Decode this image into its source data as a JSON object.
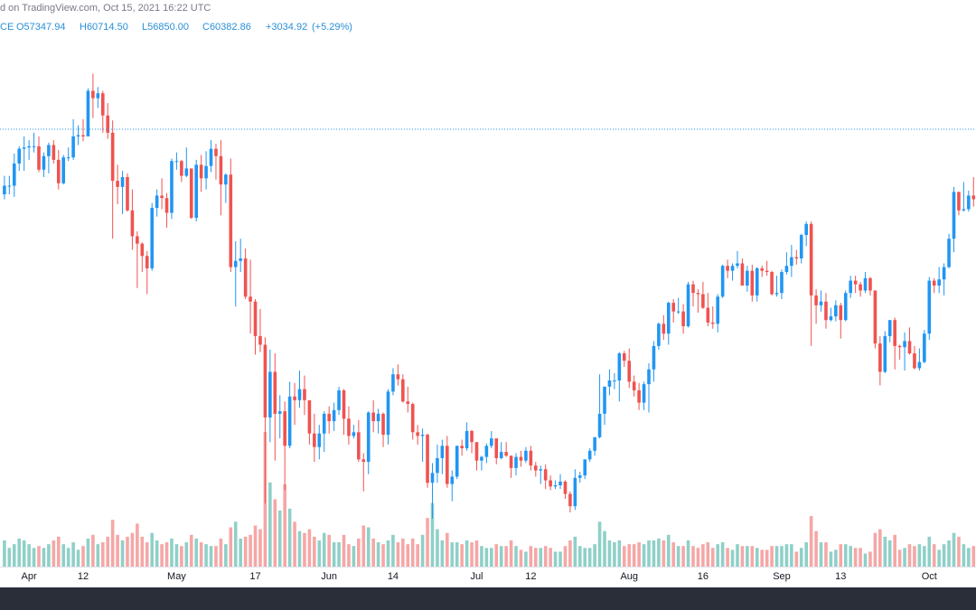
{
  "chart_data": {
    "type": "candlestick",
    "header": {
      "source": "d on TradingView.com, Oct 15, 2021 16:22 UTC",
      "symbol": "CE",
      "open": {
        "value": 57347.94,
        "label": "O57347.94"
      },
      "high": {
        "value": 60714.5,
        "label": "H60714.50"
      },
      "low": {
        "value": 56850.0,
        "label": "L56850.00"
      },
      "close": {
        "value": 60382.86,
        "label": "C60382.86"
      },
      "change": {
        "value": 3034.92,
        "label": "+3034.92"
      },
      "change_pct": {
        "value": 5.29,
        "label": "(+5.29%)"
      }
    },
    "up_color": "#2196f3",
    "down_color": "#ef5350",
    "volume_up_color": "#8fd0c8",
    "volume_down_color": "#f5a7a6",
    "price_line_color": "#2196f3",
    "xlim": [
      -0.9,
      197.5
    ],
    "ylim": [
      24900,
      69400
    ],
    "vlim": [
      0,
      100
    ],
    "xticks": [
      {
        "value": 5,
        "label": "Apr"
      },
      {
        "value": 16,
        "label": "12"
      },
      {
        "value": 35,
        "label": "May"
      },
      {
        "value": 51,
        "label": "17"
      },
      {
        "value": 66,
        "label": "Jun"
      },
      {
        "value": 79,
        "label": "14"
      },
      {
        "value": 96,
        "label": "Jul"
      },
      {
        "value": 107,
        "label": "12"
      },
      {
        "value": 127,
        "label": "Aug"
      },
      {
        "value": 142,
        "label": "16"
      },
      {
        "value": 158,
        "label": "Sep"
      },
      {
        "value": 170,
        "label": "13"
      },
      {
        "value": 188,
        "label": "Oct"
      }
    ],
    "candles": [
      [
        55100,
        56600,
        54700,
        55800
      ],
      [
        55800,
        56600,
        55100,
        55800
      ],
      [
        55800,
        58400,
        54900,
        57600
      ],
      [
        57600,
        59000,
        57000,
        58800
      ],
      [
        58800,
        59800,
        57000,
        58900
      ],
      [
        58900,
        59500,
        57900,
        59000
      ],
      [
        59000,
        60100,
        58500,
        59000
      ],
      [
        59000,
        59800,
        56900,
        57100
      ],
      [
        57100,
        58500,
        56500,
        58200
      ],
      [
        58200,
        59300,
        56800,
        59100
      ],
      [
        59100,
        59500,
        57600,
        57900
      ],
      [
        57900,
        58700,
        55500,
        56000
      ],
      [
        56000,
        58300,
        55900,
        58100
      ],
      [
        58100,
        58900,
        57800,
        58100
      ],
      [
        58100,
        61200,
        57900,
        59800
      ],
      [
        59800,
        60700,
        59100,
        59900
      ],
      [
        59900,
        61200,
        59400,
        59800
      ],
      [
        59800,
        63700,
        59800,
        63500
      ],
      [
        63500,
        64900,
        61300,
        62900
      ],
      [
        62900,
        63800,
        62100,
        63300
      ],
      [
        63300,
        63500,
        60100,
        61500
      ],
      [
        61500,
        62500,
        59600,
        60100
      ],
      [
        60100,
        61100,
        51500,
        56200
      ],
      [
        56200,
        57500,
        54300,
        55700
      ],
      [
        55700,
        57000,
        53500,
        56500
      ],
      [
        56500,
        56800,
        53700,
        53800
      ],
      [
        53800,
        55500,
        50600,
        51700
      ],
      [
        51700,
        52100,
        47500,
        51100
      ],
      [
        51100,
        51200,
        48800,
        50100
      ],
      [
        50100,
        50500,
        47000,
        49100
      ],
      [
        49100,
        54400,
        48900,
        54000
      ],
      [
        54000,
        55500,
        53300,
        55000
      ],
      [
        55000,
        56400,
        53900,
        54800
      ],
      [
        54800,
        55200,
        52400,
        53600
      ],
      [
        53600,
        58000,
        53100,
        57800
      ],
      [
        57800,
        58500,
        57100,
        57800
      ],
      [
        57800,
        57900,
        56100,
        56600
      ],
      [
        56600,
        58900,
        56500,
        57200
      ],
      [
        57200,
        57200,
        53100,
        53200
      ],
      [
        53200,
        57900,
        52900,
        57500
      ],
      [
        57500,
        58300,
        55300,
        56400
      ],
      [
        56400,
        58600,
        55500,
        57400
      ],
      [
        57400,
        59500,
        56900,
        58800
      ],
      [
        58800,
        59200,
        56300,
        58200
      ],
      [
        58200,
        59500,
        53400,
        55900
      ],
      [
        55900,
        56800,
        54400,
        56700
      ],
      [
        56700,
        58000,
        48800,
        49200
      ],
      [
        49200,
        51300,
        46000,
        49700
      ],
      [
        49700,
        51500,
        48800,
        49900
      ],
      [
        49900,
        50700,
        46600,
        46800
      ],
      [
        46800,
        49800,
        43800,
        46400
      ],
      [
        46400,
        46600,
        42100,
        43600
      ],
      [
        43600,
        45800,
        42300,
        42900
      ],
      [
        42900,
        43500,
        30000,
        37000
      ],
      [
        37000,
        42500,
        35000,
        40700
      ],
      [
        40700,
        42200,
        33500,
        37300
      ],
      [
        37300,
        38800,
        35300,
        37500
      ],
      [
        37500,
        38300,
        31100,
        34700
      ],
      [
        34700,
        39900,
        34500,
        38700
      ],
      [
        38700,
        39800,
        36400,
        38400
      ],
      [
        38400,
        40800,
        37800,
        39300
      ],
      [
        39300,
        40400,
        37200,
        38400
      ],
      [
        38400,
        38400,
        34800,
        35700
      ],
      [
        35700,
        37300,
        33400,
        34600
      ],
      [
        34600,
        36400,
        33600,
        35700
      ],
      [
        35700,
        37500,
        34200,
        37300
      ],
      [
        37300,
        37900,
        35700,
        36700
      ],
      [
        36700,
        38200,
        35900,
        37600
      ],
      [
        37600,
        39500,
        37200,
        39200
      ],
      [
        39200,
        39300,
        35600,
        36900
      ],
      [
        36900,
        37900,
        34800,
        35500
      ],
      [
        35500,
        36400,
        35300,
        35800
      ],
      [
        35800,
        36800,
        33400,
        33600
      ],
      [
        33600,
        34100,
        31000,
        33400
      ],
      [
        33400,
        37500,
        32400,
        37400
      ],
      [
        37400,
        38400,
        35800,
        36700
      ],
      [
        36700,
        37700,
        35700,
        37300
      ],
      [
        37300,
        37400,
        34600,
        35600
      ],
      [
        35600,
        39300,
        34800,
        39100
      ],
      [
        39100,
        41000,
        38800,
        40500
      ],
      [
        40500,
        41300,
        39600,
        40100
      ],
      [
        40100,
        40500,
        38200,
        38300
      ],
      [
        38300,
        39500,
        37400,
        38100
      ],
      [
        38100,
        38200,
        35200,
        35800
      ],
      [
        35800,
        36400,
        34800,
        35500
      ],
      [
        35500,
        36100,
        33400,
        35600
      ],
      [
        35600,
        35700,
        31300,
        31700
      ],
      [
        31700,
        33300,
        28800,
        32500
      ],
      [
        32500,
        34800,
        31700,
        33700
      ],
      [
        33700,
        35200,
        32400,
        34700
      ],
      [
        34700,
        35500,
        31300,
        31600
      ],
      [
        31600,
        32700,
        30200,
        32200
      ],
      [
        32200,
        34700,
        32000,
        34700
      ],
      [
        34700,
        35200,
        33900,
        34500
      ],
      [
        34500,
        36600,
        34300,
        35900
      ],
      [
        35900,
        36000,
        34100,
        35000
      ],
      [
        35000,
        35000,
        32700,
        33500
      ],
      [
        33500,
        33900,
        32700,
        33800
      ],
      [
        33800,
        34900,
        33300,
        34700
      ],
      [
        34700,
        35900,
        34500,
        35300
      ],
      [
        35300,
        35300,
        33200,
        33700
      ],
      [
        33700,
        35000,
        33600,
        34200
      ],
      [
        34200,
        35000,
        33800,
        33900
      ],
      [
        33900,
        33900,
        32100,
        32900
      ],
      [
        32900,
        34100,
        32300,
        33800
      ],
      [
        33800,
        34300,
        33000,
        33500
      ],
      [
        33500,
        34600,
        33300,
        34300
      ],
      [
        34300,
        34700,
        32700,
        33100
      ],
      [
        33100,
        33400,
        32200,
        32700
      ],
      [
        32700,
        33100,
        31600,
        32800
      ],
      [
        32800,
        33200,
        31200,
        31900
      ],
      [
        31900,
        32300,
        31100,
        31400
      ],
      [
        31400,
        31900,
        31200,
        31500
      ],
      [
        31500,
        32400,
        31200,
        31800
      ],
      [
        31800,
        31900,
        30400,
        30800
      ],
      [
        30800,
        31000,
        29300,
        29800
      ],
      [
        29800,
        32800,
        29500,
        32100
      ],
      [
        32100,
        32600,
        31700,
        32300
      ],
      [
        32300,
        33600,
        32000,
        33600
      ],
      [
        33600,
        34500,
        33400,
        34300
      ],
      [
        34300,
        35400,
        33900,
        35400
      ],
      [
        35400,
        40500,
        35300,
        37300
      ],
      [
        37300,
        39500,
        36400,
        39500
      ],
      [
        39500,
        40900,
        38800,
        40000
      ],
      [
        40000,
        40600,
        39300,
        40000
      ],
      [
        40000,
        42300,
        38300,
        42200
      ],
      [
        42200,
        42400,
        41100,
        41600
      ],
      [
        41600,
        42600,
        39400,
        39900
      ],
      [
        39900,
        40400,
        38700,
        39200
      ],
      [
        39200,
        39800,
        37600,
        38200
      ],
      [
        38200,
        39900,
        37600,
        39700
      ],
      [
        39700,
        41400,
        37400,
        40900
      ],
      [
        40900,
        43200,
        39900,
        42800
      ],
      [
        42800,
        44700,
        42500,
        44600
      ],
      [
        44600,
        45300,
        43300,
        43800
      ],
      [
        43800,
        46400,
        42900,
        46300
      ],
      [
        46300,
        46600,
        44700,
        45600
      ],
      [
        45600,
        46700,
        45400,
        45600
      ],
      [
        45600,
        46200,
        43800,
        44400
      ],
      [
        44400,
        48000,
        44300,
        47800
      ],
      [
        47800,
        48100,
        46000,
        47100
      ],
      [
        47100,
        47400,
        45500,
        47000
      ],
      [
        47000,
        48000,
        45800,
        45900
      ],
      [
        45900,
        47100,
        44400,
        44700
      ],
      [
        44700,
        46000,
        44200,
        44600
      ],
      [
        44600,
        47000,
        43900,
        46800
      ],
      [
        46800,
        49400,
        46700,
        49300
      ],
      [
        49300,
        49800,
        48300,
        48900
      ],
      [
        48900,
        49500,
        48100,
        49300
      ],
      [
        49300,
        50500,
        49100,
        49500
      ],
      [
        49500,
        49900,
        47700,
        47700
      ],
      [
        47700,
        49300,
        47200,
        48900
      ],
      [
        48900,
        49400,
        46400,
        46900
      ],
      [
        46900,
        49200,
        46400,
        49100
      ],
      [
        49100,
        49300,
        48400,
        48900
      ],
      [
        48900,
        49700,
        48500,
        48800
      ],
      [
        48800,
        48900,
        46900,
        47000
      ],
      [
        47000,
        48500,
        46800,
        47100
      ],
      [
        47100,
        49000,
        46600,
        48800
      ],
      [
        48800,
        50400,
        48600,
        49300
      ],
      [
        49300,
        51000,
        48400,
        50000
      ],
      [
        50000,
        50600,
        49400,
        49900
      ],
      [
        49900,
        51900,
        49500,
        51800
      ],
      [
        51800,
        52900,
        50900,
        52700
      ],
      [
        52700,
        52900,
        42800,
        46900
      ],
      [
        46900,
        47400,
        44600,
        46100
      ],
      [
        46100,
        47300,
        45600,
        46400
      ],
      [
        46400,
        47100,
        44200,
        44900
      ],
      [
        44900,
        45900,
        44800,
        45200
      ],
      [
        45200,
        46500,
        44800,
        46100
      ],
      [
        46100,
        46300,
        43400,
        44900
      ],
      [
        44900,
        47300,
        44800,
        47100
      ],
      [
        47100,
        48500,
        46700,
        48100
      ],
      [
        48100,
        48500,
        47100,
        47800
      ],
      [
        47800,
        48000,
        46800,
        47300
      ],
      [
        47300,
        48800,
        47100,
        48300
      ],
      [
        48300,
        48400,
        46900,
        47300
      ],
      [
        47300,
        47300,
        42600,
        43000
      ],
      [
        43000,
        43600,
        39600,
        40700
      ],
      [
        40700,
        44000,
        40600,
        43600
      ],
      [
        43600,
        44900,
        43100,
        44900
      ],
      [
        44900,
        45100,
        40900,
        42800
      ],
      [
        42800,
        42900,
        41700,
        42700
      ],
      [
        42700,
        43900,
        40800,
        43200
      ],
      [
        43200,
        44300,
        42100,
        42200
      ],
      [
        42200,
        42800,
        40900,
        41000
      ],
      [
        41000,
        42600,
        40800,
        41500
      ],
      [
        41500,
        44100,
        41400,
        43800
      ],
      [
        43800,
        48400,
        43300,
        48100
      ],
      [
        48100,
        48300,
        47100,
        47700
      ],
      [
        47700,
        49200,
        47100,
        48200
      ],
      [
        48200,
        49500,
        46900,
        49200
      ],
      [
        49200,
        51900,
        49100,
        51500
      ],
      [
        51500,
        55700,
        50400,
        55300
      ],
      [
        55300,
        55300,
        53400,
        53800
      ],
      [
        53800,
        56100,
        53700,
        53900
      ],
      [
        53900,
        55400,
        53700,
        55000
      ],
      [
        55000,
        56500,
        54100,
        54700
      ]
    ],
    "volumes": [
      14,
      10,
      12,
      15,
      14,
      12,
      10,
      11,
      10,
      12,
      14,
      16,
      12,
      10,
      13,
      9,
      11,
      15,
      17,
      12,
      13,
      16,
      25,
      17,
      14,
      16,
      18,
      23,
      16,
      13,
      18,
      14,
      12,
      13,
      15,
      12,
      11,
      13,
      17,
      15,
      13,
      12,
      11,
      11,
      15,
      12,
      21,
      24,
      15,
      16,
      17,
      22,
      20,
      72,
      45,
      36,
      30,
      44,
      31,
      24,
      19,
      18,
      20,
      16,
      14,
      18,
      17,
      13,
      13,
      17,
      12,
      11,
      15,
      22,
      21,
      15,
      13,
      12,
      14,
      17,
      13,
      15,
      12,
      15,
      12,
      17,
      26,
      34,
      20,
      14,
      18,
      13,
      13,
      12,
      14,
      13,
      14,
      11,
      10,
      10,
      12,
      11,
      11,
      14,
      11,
      9,
      8,
      11,
      10,
      10,
      11,
      10,
      8,
      8,
      11,
      14,
      16,
      11,
      10,
      10,
      12,
      24,
      19,
      14,
      13,
      14,
      11,
      12,
      12,
      13,
      12,
      14,
      14,
      15,
      14,
      17,
      13,
      11,
      11,
      14,
      11,
      10,
      12,
      13,
      10,
      12,
      13,
      10,
      9,
      12,
      11,
      11,
      11,
      10,
      9,
      9,
      11,
      11,
      11,
      12,
      12,
      8,
      10,
      13,
      27,
      19,
      13,
      13,
      8,
      9,
      12,
      12,
      11,
      10,
      10,
      7,
      8,
      18,
      20,
      16,
      14,
      17,
      9,
      10,
      12,
      11,
      12,
      11,
      16,
      12,
      9,
      12,
      14,
      18,
      16,
      12,
      10,
      11
    ]
  }
}
